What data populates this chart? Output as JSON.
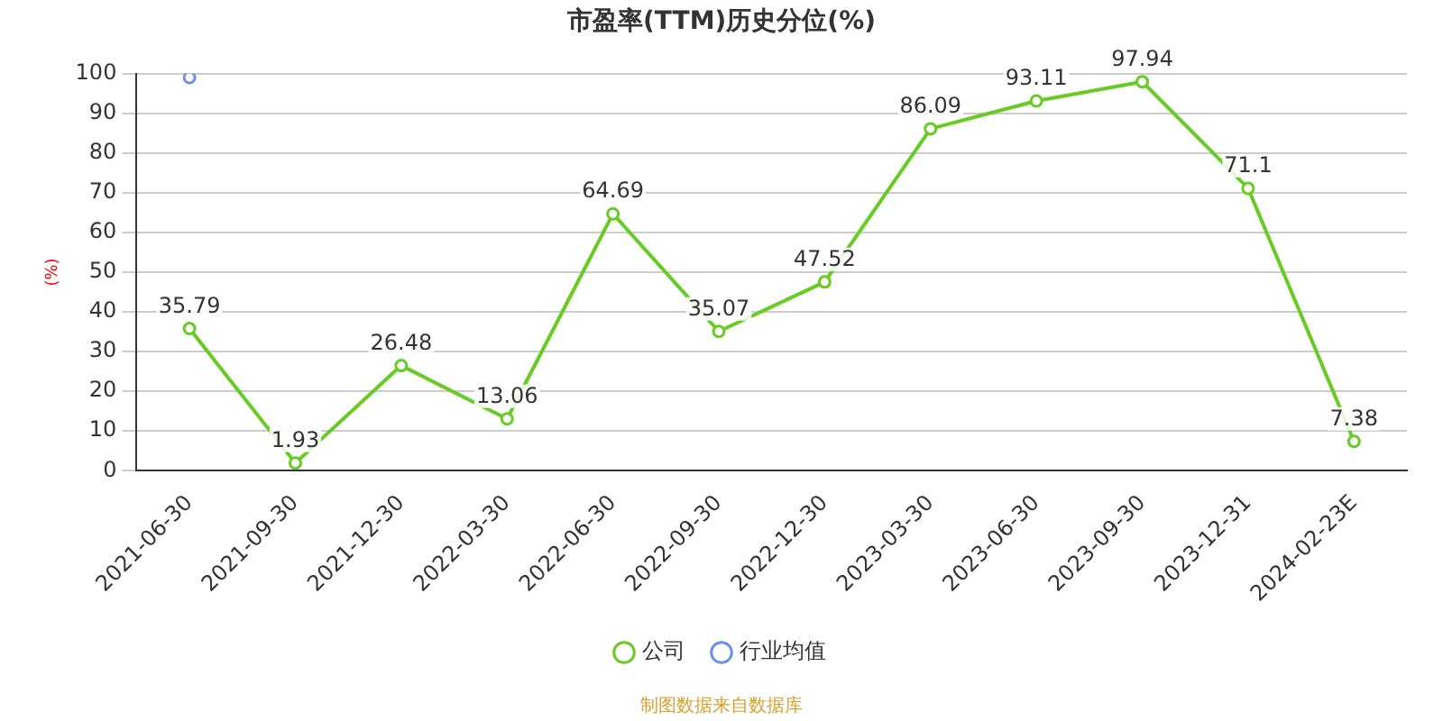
{
  "chart_data": {
    "type": "line",
    "title": "市盈率(TTM)历史分位(%)",
    "ylabel": "(%)",
    "categories": [
      "2021-06-30",
      "2021-09-30",
      "2021-12-30",
      "2022-03-30",
      "2022-06-30",
      "2022-09-30",
      "2022-12-30",
      "2023-03-30",
      "2023-06-30",
      "2023-09-30",
      "2023-12-31",
      "2024-02-23E"
    ],
    "series": [
      {
        "name": "公司",
        "color": "#66cc22",
        "values": [
          35.79,
          1.93,
          26.48,
          13.06,
          64.69,
          35.07,
          47.52,
          86.09,
          93.11,
          97.94,
          71.1,
          7.38
        ],
        "value_labels": [
          "35.79",
          "1.93",
          "26.48",
          "13.06",
          "64.69",
          "35.07",
          "47.52",
          "86.09",
          "93.11",
          "97.94",
          "71.1",
          "7.38"
        ]
      },
      {
        "name": "行业均值",
        "color": "#6d8ff0",
        "values": [
          99,
          null,
          null,
          null,
          null,
          null,
          null,
          null,
          null,
          null,
          null,
          null
        ]
      }
    ],
    "ylim": [
      0,
      100
    ],
    "yticks": [
      0,
      10,
      20,
      30,
      40,
      50,
      60,
      70,
      80,
      90,
      100
    ],
    "grid": "y",
    "legend": "bottom",
    "marker": "circle",
    "line_style": "solid",
    "annotations": [
      "制图数据来自数据库"
    ]
  }
}
